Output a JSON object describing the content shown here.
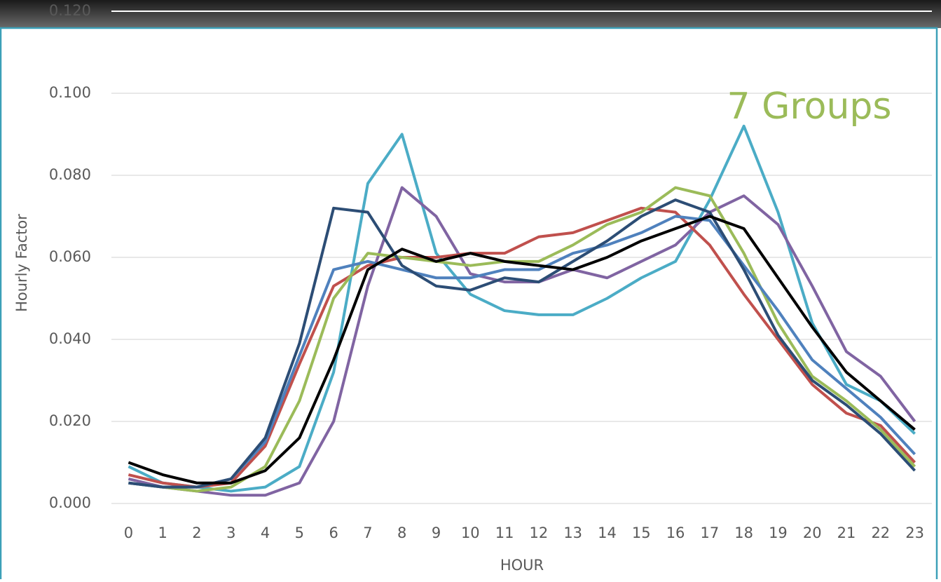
{
  "chart_data": {
    "type": "line",
    "axis_label_y": "Hourly Factor",
    "axis_label_x": "HOUR",
    "annotation": "7 Groups",
    "annotation_color": "#9bbb59",
    "x": [
      0,
      1,
      2,
      3,
      4,
      5,
      6,
      7,
      8,
      9,
      10,
      11,
      12,
      13,
      14,
      15,
      16,
      17,
      18,
      19,
      20,
      21,
      22,
      23
    ],
    "xlim": [
      -0.5,
      23.5
    ],
    "xticks": [
      0,
      1,
      2,
      3,
      4,
      5,
      6,
      7,
      8,
      9,
      10,
      11,
      12,
      13,
      14,
      15,
      16,
      17,
      18,
      19,
      20,
      21,
      22,
      23
    ],
    "ylim": [
      0,
      0.12
    ],
    "yticks": [
      {
        "value": 0,
        "label": "0.000"
      },
      {
        "value": 0.02,
        "label": "0.020"
      },
      {
        "value": 0.04,
        "label": "0.040"
      },
      {
        "value": 0.06,
        "label": "0.060"
      },
      {
        "value": 0.08,
        "label": "0.080"
      },
      {
        "value": 0.1,
        "label": "0.100"
      },
      {
        "value": 0.12,
        "label": "0.120"
      }
    ],
    "grid": true,
    "series": [
      {
        "color": "#4bacc6",
        "values": [
          0.009,
          0.005,
          0.004,
          0.003,
          0.004,
          0.009,
          0.032,
          0.078,
          0.09,
          0.061,
          0.051,
          0.047,
          0.046,
          0.046,
          0.05,
          0.055,
          0.059,
          0.074,
          0.092,
          0.071,
          0.044,
          0.029,
          0.025,
          0.017
        ]
      },
      {
        "color": "#8064a2",
        "values": [
          0.006,
          0.004,
          0.003,
          0.002,
          0.002,
          0.005,
          0.02,
          0.053,
          0.077,
          0.07,
          0.056,
          0.054,
          0.054,
          0.057,
          0.055,
          0.059,
          0.063,
          0.071,
          0.075,
          0.068,
          0.053,
          0.037,
          0.031,
          0.02
        ]
      },
      {
        "color": "#c0504d",
        "values": [
          0.007,
          0.005,
          0.004,
          0.005,
          0.014,
          0.034,
          0.053,
          0.058,
          0.06,
          0.06,
          0.061,
          0.061,
          0.065,
          0.066,
          0.069,
          0.072,
          0.071,
          0.063,
          0.051,
          0.04,
          0.029,
          0.022,
          0.019,
          0.01
        ]
      },
      {
        "color": "#9bbb59",
        "values": [
          0.005,
          0.004,
          0.003,
          0.004,
          0.009,
          0.025,
          0.05,
          0.061,
          0.06,
          0.059,
          0.058,
          0.059,
          0.059,
          0.063,
          0.068,
          0.071,
          0.077,
          0.075,
          0.061,
          0.044,
          0.031,
          0.025,
          0.018,
          0.009
        ]
      },
      {
        "color": "#4f81bd",
        "values": [
          0.005,
          0.004,
          0.004,
          0.006,
          0.015,
          0.036,
          0.057,
          0.059,
          0.057,
          0.055,
          0.055,
          0.057,
          0.057,
          0.061,
          0.063,
          0.066,
          0.07,
          0.069,
          0.058,
          0.047,
          0.035,
          0.028,
          0.021,
          0.012
        ]
      },
      {
        "color": "#2c4d75",
        "values": [
          0.005,
          0.004,
          0.004,
          0.006,
          0.016,
          0.039,
          0.072,
          0.071,
          0.058,
          0.053,
          0.052,
          0.055,
          0.054,
          0.059,
          0.064,
          0.07,
          0.074,
          0.071,
          0.057,
          0.041,
          0.03,
          0.024,
          0.017,
          0.008
        ]
      },
      {
        "color": "#000000",
        "values": [
          0.01,
          0.007,
          0.005,
          0.005,
          0.008,
          0.016,
          0.035,
          0.057,
          0.062,
          0.059,
          0.061,
          0.059,
          0.058,
          0.057,
          0.06,
          0.064,
          0.067,
          0.07,
          0.067,
          0.055,
          0.043,
          0.032,
          0.025,
          0.018
        ]
      }
    ]
  }
}
